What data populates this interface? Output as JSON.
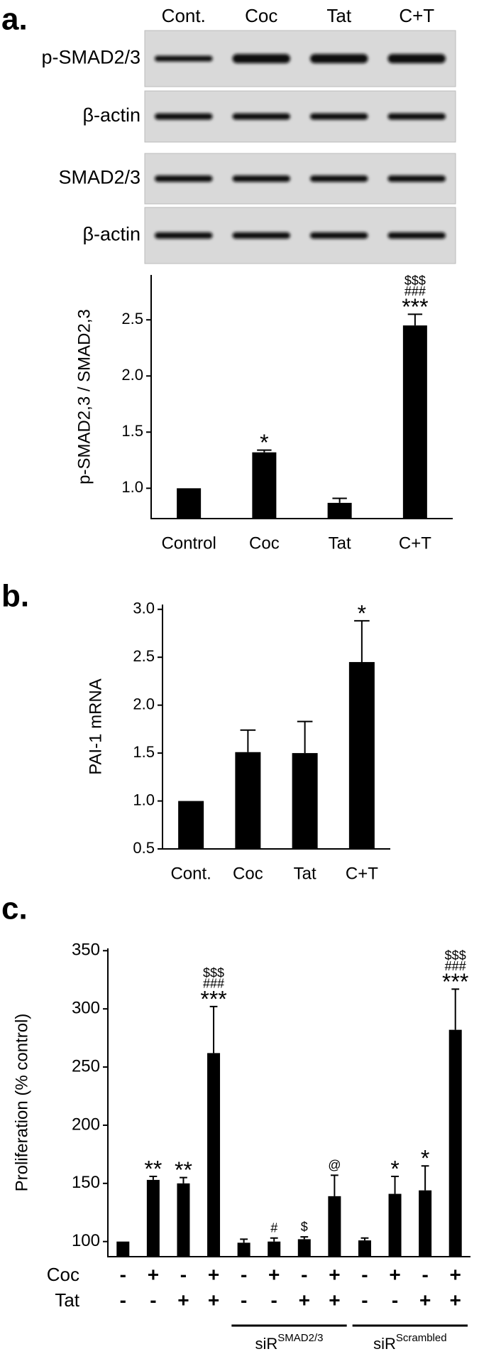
{
  "blot": {
    "panel": "a.",
    "lanes": [
      "Cont.",
      "Coc",
      "Tat",
      "C+T"
    ],
    "rows": [
      "p-SMAD2/3",
      "β-actin",
      "SMAD2/3",
      "β-actin"
    ]
  },
  "chart_data": [
    {
      "type": "bar",
      "ylabel": "p-SMAD2,3 / SMAD2,3",
      "categories": [
        "Control",
        "Coc",
        "Tat",
        "C+T"
      ],
      "values": [
        1.0,
        1.32,
        0.87,
        2.45
      ],
      "errors": [
        0,
        0.02,
        0.04,
        0.1
      ],
      "annotations": [
        [],
        [
          "*"
        ],
        [],
        [
          "$$$",
          "###",
          "***"
        ]
      ],
      "color": "#000000",
      "ylim": [
        0.73,
        2.9
      ],
      "yticks": [
        {
          "value": 1,
          "label": "1.0"
        },
        {
          "value": 1.5,
          "label": "1.5"
        },
        {
          "value": 2,
          "label": "2.0"
        },
        {
          "value": 2.5,
          "label": "2.5"
        }
      ]
    },
    {
      "type": "bar",
      "panel": "b.",
      "ylabel": "PAI-1 mRNA",
      "categories": [
        "Cont.",
        "Coc",
        "Tat",
        "C+T"
      ],
      "values": [
        1.0,
        1.51,
        1.5,
        2.45
      ],
      "errors": [
        0,
        0.23,
        0.33,
        0.43
      ],
      "annotations": [
        [],
        [],
        [],
        [
          "*"
        ]
      ],
      "color": "#000000",
      "ylim": [
        0.5,
        3.05
      ],
      "yticks": [
        {
          "value": 0.5,
          "label": "0.5"
        },
        {
          "value": 1,
          "label": "1.0"
        },
        {
          "value": 1.5,
          "label": "1.5"
        },
        {
          "value": 2,
          "label": "2.0"
        },
        {
          "value": 2.5,
          "label": "2.5"
        },
        {
          "value": 3,
          "label": "3.0"
        }
      ]
    },
    {
      "type": "bar",
      "panel": "c.",
      "ylabel": "Proliferation (% control)",
      "values": [
        100,
        153,
        150,
        262,
        99,
        100,
        102,
        139,
        101,
        141,
        144,
        282
      ],
      "errors": [
        0,
        3,
        5,
        40,
        3,
        3,
        2,
        18,
        2,
        15,
        21,
        35
      ],
      "annotations": [
        [],
        [
          "**"
        ],
        [
          "**"
        ],
        [
          "$$$",
          "###",
          "***"
        ],
        [],
        [
          "#"
        ],
        [
          "$"
        ],
        [
          "@"
        ],
        [],
        [
          "*"
        ],
        [
          "*"
        ],
        [
          "$$$",
          "###",
          "***"
        ]
      ],
      "rows": [
        {
          "name": "Coc",
          "values": [
            "-",
            "+",
            "-",
            "+",
            "-",
            "+",
            "-",
            "+",
            "-",
            "+",
            "-",
            "+"
          ]
        },
        {
          "name": "Tat",
          "values": [
            "-",
            "-",
            "+",
            "+",
            "-",
            "-",
            "+",
            "+",
            "-",
            "-",
            "+",
            "+"
          ]
        }
      ],
      "groups": [
        {
          "name": "siR",
          "superscript": "SMAD2/3"
        },
        {
          "name": "siR",
          "superscript": "Scrambled"
        }
      ],
      "color": "#000000",
      "ylim": [
        87,
        352
      ],
      "yticks": [
        100,
        150,
        200,
        250,
        300,
        350
      ]
    }
  ]
}
